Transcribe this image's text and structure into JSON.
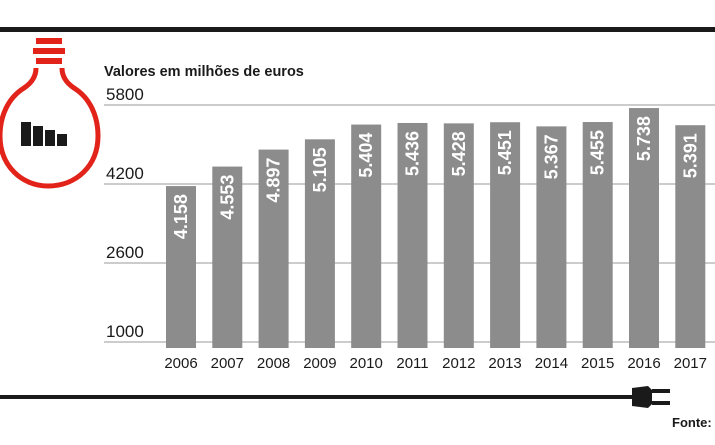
{
  "chart_data": {
    "type": "bar",
    "subtitle": "Valores em milhões de euros",
    "categories": [
      "2006",
      "2007",
      "2008",
      "2009",
      "2010",
      "2011",
      "2012",
      "2013",
      "2014",
      "2015",
      "2016",
      "2017"
    ],
    "values": [
      4158,
      4553,
      4897,
      5105,
      5404,
      5436,
      5428,
      5451,
      5367,
      5455,
      5738,
      5391
    ],
    "value_labels": [
      "4.158",
      "4.553",
      "4.897",
      "5.105",
      "5.404",
      "5.436",
      "5.428",
      "5.451",
      "5.367",
      "5.455",
      "5.738",
      "5.391"
    ],
    "yticks": [
      "1000",
      "2600",
      "4200",
      "5800"
    ],
    "ytick_values": [
      1000,
      2600,
      4200,
      5800
    ],
    "ylim": [
      1000,
      5800
    ],
    "grid": true,
    "colors": {
      "bar": "#8c8c8c",
      "label": "#ffffff",
      "accent": "#e2231a",
      "ink": "#1a1a1a",
      "grid": "#9a9a9a"
    }
  },
  "footer": {
    "source_label": "Fonte:"
  },
  "icons": {
    "bulb": "lightbulb-chart-icon",
    "plug": "power-plug-icon"
  }
}
